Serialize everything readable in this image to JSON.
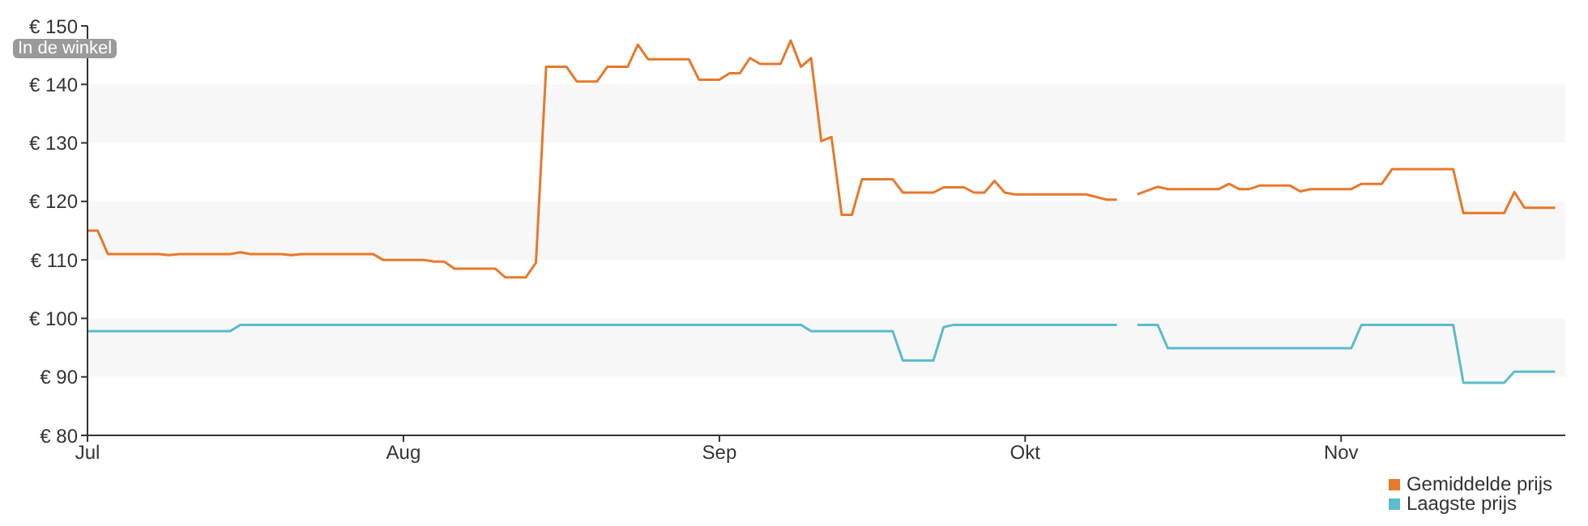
{
  "chart_data": {
    "type": "line",
    "annotations": [
      "In de winkel"
    ],
    "xlim": [
      "--07-01",
      "--11-23"
    ],
    "xticks": [
      {
        "value": "--07-01",
        "label": "Jul"
      },
      {
        "value": "--08-01",
        "label": "Aug"
      },
      {
        "value": "--09-01",
        "label": "Sep"
      },
      {
        "value": "--10-01",
        "label": "Okt"
      },
      {
        "value": "--11-01",
        "label": "Nov"
      }
    ],
    "ylim": [
      80,
      150
    ],
    "yticks": [
      {
        "value": 80,
        "label": "€ 80"
      },
      {
        "value": 90,
        "label": "€ 90"
      },
      {
        "value": 100,
        "label": "€ 100"
      },
      {
        "value": 110,
        "label": "€ 110"
      },
      {
        "value": 120,
        "label": "€ 120"
      },
      {
        "value": 130,
        "label": "€ 130"
      },
      {
        "value": 140,
        "label": "€ 140"
      },
      {
        "value": 150,
        "label": "€ 150"
      }
    ],
    "bands": [
      {
        "axis": "y",
        "from": 90,
        "to": 100,
        "color": "#f7f7f7"
      },
      {
        "axis": "y",
        "from": 110,
        "to": 120,
        "color": "#f7f7f7"
      },
      {
        "axis": "y",
        "from": 130,
        "to": 140,
        "color": "#f7f7f7"
      }
    ],
    "grid": false,
    "marker": "none",
    "legend": "bottom right",
    "series": [
      {
        "name": "Gemiddelde prijs",
        "color": "#e8782a",
        "x": [
          "--07-01",
          "--07-02",
          "--07-03",
          "--07-08",
          "--07-09",
          "--07-10",
          "--07-15",
          "--07-16",
          "--07-17",
          "--07-20",
          "--07-21",
          "--07-22",
          "--07-29",
          "--07-30",
          "--08-03",
          "--08-04",
          "--08-05",
          "--08-06",
          "--08-10",
          "--08-11",
          "--08-13",
          "--08-14",
          "--08-15",
          "--08-17",
          "--08-18",
          "--08-20",
          "--08-21",
          "--08-23",
          "--08-24",
          "--08-25",
          "--08-29",
          "--08-30",
          "--09-01",
          "--09-02",
          "--09-03",
          "--09-04",
          "--09-05",
          "--09-07",
          "--09-08",
          "--09-09",
          "--09-10",
          "--09-11",
          "--09-12",
          "--09-13",
          "--09-14",
          "--09-15",
          "--09-18",
          "--09-19",
          "--09-22",
          "--09-23",
          "--09-25",
          "--09-26",
          "--09-27",
          "--09-28",
          "--09-29",
          "--09-30",
          "--10-07",
          "--10-09",
          "--10-10",
          "--10-11",
          "--10-12",
          "--10-14",
          "--10-15",
          "--10-20",
          "--10-21",
          "--10-22",
          "--10-23",
          "--10-24",
          "--10-27",
          "--10-28",
          "--10-29",
          "--11-02",
          "--11-03",
          "--11-05",
          "--11-06",
          "--11-12",
          "--11-13",
          "--11-17",
          "--11-18",
          "--11-19",
          "--11-22"
        ],
        "values": [
          115,
          115,
          111,
          111,
          110.8,
          111,
          111,
          111.3,
          111,
          111,
          110.8,
          111,
          111,
          110,
          110,
          109.7,
          109.7,
          108.5,
          108.5,
          107,
          107,
          109.5,
          143,
          143,
          140.5,
          140.5,
          143,
          143,
          146.8,
          144.3,
          144.3,
          140.8,
          140.8,
          141.9,
          141.9,
          144.5,
          143.5,
          143.5,
          147.5,
          143,
          144.5,
          130.3,
          131,
          117.7,
          117.7,
          123.8,
          123.8,
          121.5,
          121.5,
          122.4,
          122.4,
          121.5,
          121.5,
          123.5,
          121.5,
          121.2,
          121.2,
          120.3,
          120.3,
          null,
          121.2,
          122.5,
          122.1,
          122.1,
          123,
          122.1,
          122.1,
          122.7,
          122.7,
          121.7,
          122.1,
          122.1,
          123,
          123,
          125.5,
          125.5,
          118,
          118,
          121.6,
          118.9,
          118.9
        ]
      },
      {
        "name": "Laagste prijs",
        "color": "#5bbccc",
        "x": [
          "--07-01",
          "--07-15",
          "--07-16",
          "--09-09",
          "--09-10",
          "--09-18",
          "--09-19",
          "--09-22",
          "--09-23",
          "--09-24",
          "--10-10",
          "--10-11",
          "--10-12",
          "--10-14",
          "--10-15",
          "--11-02",
          "--11-03",
          "--11-12",
          "--11-13",
          "--11-17",
          "--11-18",
          "--11-22"
        ],
        "values": [
          97.8,
          97.8,
          98.9,
          98.9,
          97.8,
          97.8,
          92.8,
          92.8,
          98.5,
          98.9,
          98.9,
          null,
          98.9,
          98.9,
          94.9,
          94.9,
          98.9,
          98.9,
          89,
          89,
          90.9,
          90.9
        ]
      }
    ]
  }
}
